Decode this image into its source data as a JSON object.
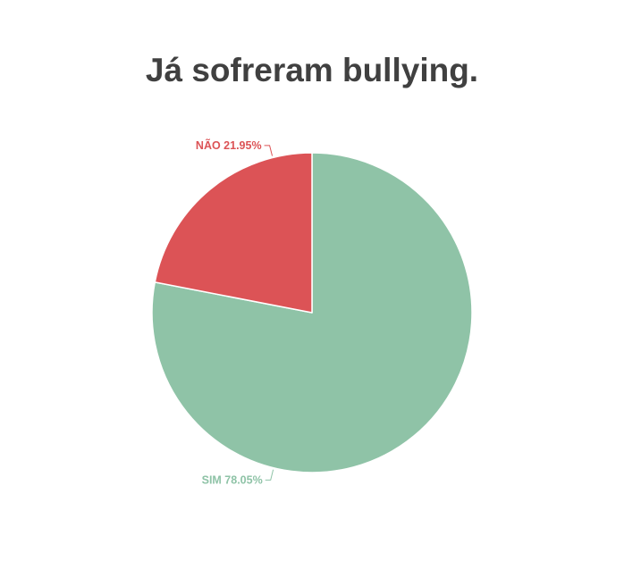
{
  "chart_data": {
    "type": "pie",
    "title": "Já sofreram bullying.",
    "slices": [
      {
        "label": "SIM",
        "value": 78.05,
        "display": "SIM 78.05%",
        "color": "#8fc3a7"
      },
      {
        "label": "NÃO",
        "value": 21.95,
        "display": "NÃO 21.95%",
        "color": "#dc5356"
      }
    ],
    "start_angle_deg": 0,
    "direction": "clockwise",
    "legend": "none"
  }
}
